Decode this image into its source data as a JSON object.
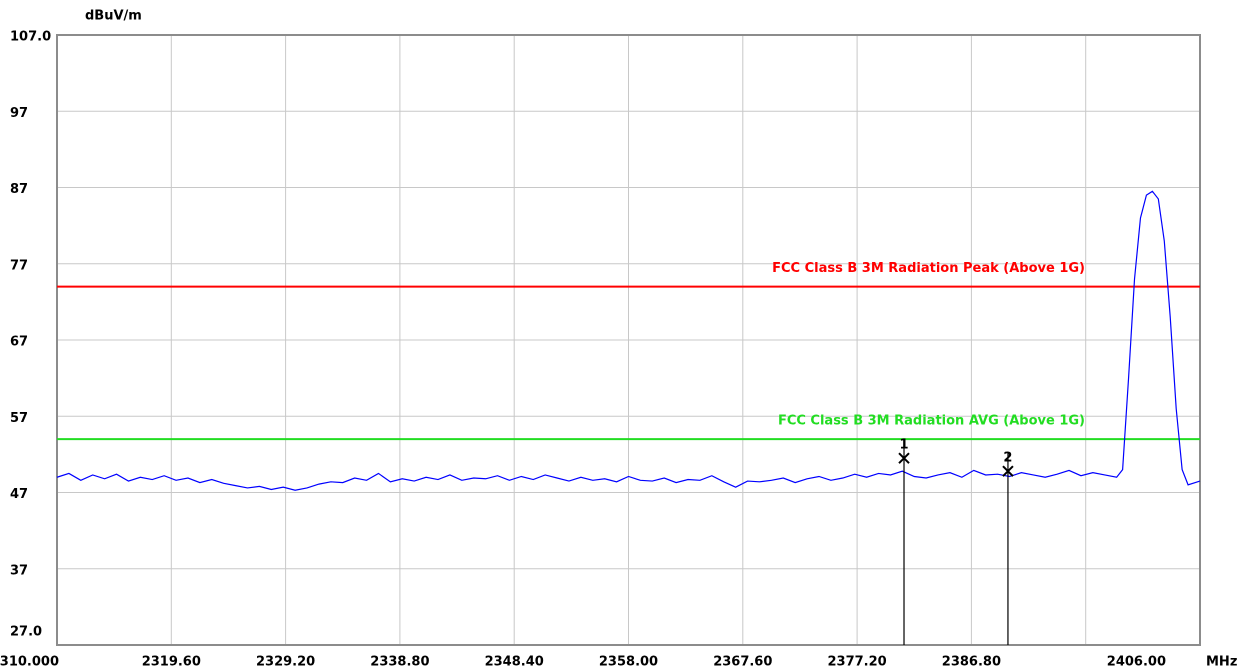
{
  "chart_data": {
    "type": "line",
    "y_unit": "dBuV/m",
    "x_unit": "MHz",
    "xlim": [
      2310,
      2406
    ],
    "xticks": [
      {
        "value": 2310,
        "label": "2310.000"
      },
      {
        "value": 2319.6,
        "label": "2319.60"
      },
      {
        "value": 2329.2,
        "label": "2329.20"
      },
      {
        "value": 2338.8,
        "label": "2338.80"
      },
      {
        "value": 2348.4,
        "label": "2348.40"
      },
      {
        "value": 2358,
        "label": "2358.00"
      },
      {
        "value": 2367.6,
        "label": "2367.60"
      },
      {
        "value": 2377.2,
        "label": "2377.20"
      },
      {
        "value": 2386.8,
        "label": "2386.80"
      },
      {
        "value": 2396.4,
        "label": ""
      },
      {
        "value": 2406,
        "label": "2406.00"
      }
    ],
    "ylim": [
      27,
      107
    ],
    "yticks": [
      {
        "value": 27,
        "label": "27.0"
      },
      37,
      47,
      57,
      67,
      77,
      87,
      97,
      {
        "value": 107,
        "label": "107.0"
      }
    ],
    "grid": true,
    "color": "#0000ff",
    "x": [
      2310,
      2311,
      2312,
      2313,
      2314,
      2315,
      2316,
      2317,
      2318,
      2319,
      2320,
      2321,
      2322,
      2323,
      2324,
      2325,
      2326,
      2327,
      2328,
      2329,
      2330,
      2331,
      2332,
      2333,
      2334,
      2335,
      2336,
      2337,
      2338,
      2339,
      2340,
      2341,
      2342,
      2343,
      2344,
      2345,
      2346,
      2347,
      2348,
      2349,
      2350,
      2351,
      2352,
      2353,
      2354,
      2355,
      2356,
      2357,
      2358,
      2359,
      2360,
      2361,
      2362,
      2363,
      2364,
      2365,
      2366,
      2367,
      2368,
      2369,
      2370,
      2371,
      2372,
      2373,
      2374,
      2375,
      2376,
      2377,
      2378,
      2379,
      2380,
      2381,
      2382,
      2383,
      2384,
      2385,
      2386,
      2387,
      2388,
      2389,
      2390,
      2391,
      2392,
      2393,
      2394,
      2395,
      2396,
      2397,
      2398,
      2399,
      2399.5,
      2400,
      2400.5,
      2401,
      2401.5,
      2402,
      2402.5,
      2403,
      2403.5,
      2404,
      2404.5,
      2405,
      2406
    ],
    "values": [
      49,
      49.5,
      48.6,
      49.3,
      48.8,
      49.4,
      48.5,
      49,
      48.7,
      49.2,
      48.6,
      48.9,
      48.3,
      48.7,
      48.2,
      47.9,
      47.6,
      47.8,
      47.4,
      47.7,
      47.3,
      47.6,
      48.1,
      48.4,
      48.3,
      48.9,
      48.6,
      49.5,
      48.4,
      48.8,
      48.5,
      49,
      48.7,
      49.3,
      48.6,
      48.9,
      48.8,
      49.2,
      48.6,
      49.1,
      48.7,
      49.3,
      48.9,
      48.5,
      49,
      48.6,
      48.8,
      48.4,
      49.1,
      48.6,
      48.5,
      48.9,
      48.3,
      48.7,
      48.6,
      49.2,
      48.4,
      47.7,
      48.5,
      48.4,
      48.6,
      48.9,
      48.3,
      48.8,
      49.1,
      48.6,
      48.9,
      49.4,
      49,
      49.5,
      49.3,
      49.8,
      49.1,
      48.9,
      49.3,
      49.6,
      49,
      49.9,
      49.3,
      49.4,
      49.1,
      49.6,
      49.3,
      49,
      49.4,
      49.9,
      49.2,
      49.6,
      49.3,
      49,
      50,
      62,
      75,
      83,
      86,
      86.5,
      85.5,
      80,
      70,
      58,
      50,
      48,
      48.5
    ],
    "limit_lines": [
      {
        "label": "FCC Class B 3M Radiation Peak (Above 1G)",
        "value": 74,
        "color": "#ff0000"
      },
      {
        "label": "FCC Class B 3M Radiation AVG (Above 1G)",
        "value": 54,
        "color": "#22dd22"
      }
    ],
    "markers": [
      {
        "label": "1",
        "x": 2381.14,
        "value": 51.5
      },
      {
        "label": "2",
        "x": 2389.87,
        "value": 49.8
      }
    ]
  }
}
